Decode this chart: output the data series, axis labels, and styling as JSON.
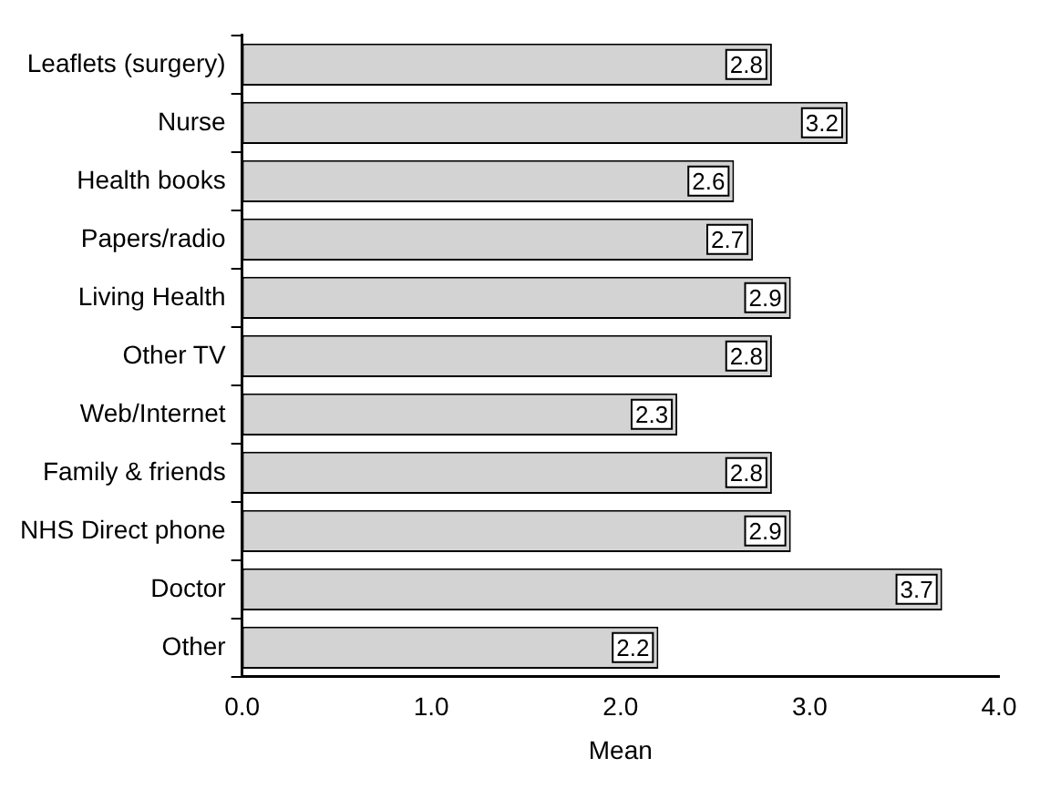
{
  "chart_data": {
    "type": "bar",
    "orientation": "horizontal",
    "xlabel": "Mean",
    "categories": [
      "Leaflets (surgery)",
      "Nurse",
      "Health books",
      "Papers/radio",
      "Living Health",
      "Other TV",
      "Web/Internet",
      "Family & friends",
      "NHS Direct phone",
      "Doctor",
      "Other"
    ],
    "values": [
      2.8,
      3.2,
      2.6,
      2.7,
      2.9,
      2.8,
      2.3,
      2.8,
      2.9,
      3.7,
      2.2
    ],
    "color": "#d3d3d3",
    "data_labels": true,
    "xlim": [
      0,
      4
    ],
    "xticks": [
      {
        "value": 0,
        "label": "0.0"
      },
      {
        "value": 1,
        "label": "1.0"
      },
      {
        "value": 2,
        "label": "2.0"
      },
      {
        "value": 3,
        "label": "3.0"
      },
      {
        "value": 4,
        "label": "4.0"
      }
    ],
    "grid": false,
    "legend": false
  }
}
